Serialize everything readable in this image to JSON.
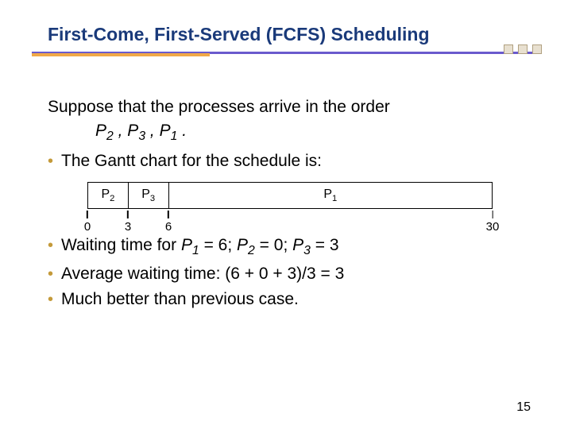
{
  "title": "First-Come, First-Served (FCFS) Scheduling",
  "intro": "Suppose that the processes arrive in the order",
  "order": {
    "p2": "P",
    "p2sub": "2",
    "p3": "P",
    "p3sub": "3",
    "p1": "P",
    "p1sub": "1",
    "sep": " , ",
    "end": " ."
  },
  "bullets": {
    "b1": "The Gantt chart for the schedule is:",
    "b2_pre": "Waiting time for ",
    "b2_p1": "P",
    "b2_p1sub": "1",
    "b2_p1eq": " = 6",
    "b2_p2": "P",
    "b2_p2sub": "2",
    "b2_p2eq": " = 0",
    "b2_p3": "P",
    "b2_p3sub": "3",
    "b2_p3eq": " = 3",
    "b2_semi": "; ",
    "b3": "Average waiting time:   (6 + 0 + 3)/3 = 3",
    "b4": "Much better than previous case."
  },
  "gantt": {
    "total": 30,
    "segments": [
      {
        "label_p": "P",
        "label_n": "2",
        "start": 0,
        "end": 3
      },
      {
        "label_p": "P",
        "label_n": "3",
        "start": 3,
        "end": 6
      },
      {
        "label_p": "P",
        "label_n": "1",
        "start": 6,
        "end": 30
      }
    ],
    "ticks": [
      {
        "pos": 0,
        "label": "0"
      },
      {
        "pos": 3,
        "label": "3"
      },
      {
        "pos": 6,
        "label": "6"
      },
      {
        "pos": 30,
        "label": "30"
      }
    ],
    "border_color": "#000000",
    "background": "#ffffff"
  },
  "colors": {
    "title": "#1a3a7a",
    "bullet_dot": "#c49a3a",
    "underline_main": "#6a5acd",
    "underline_accent": "#f0a848",
    "decor_square_fill": "#e8e0d0",
    "decor_square_border": "#b0a080"
  },
  "page_number": "15"
}
